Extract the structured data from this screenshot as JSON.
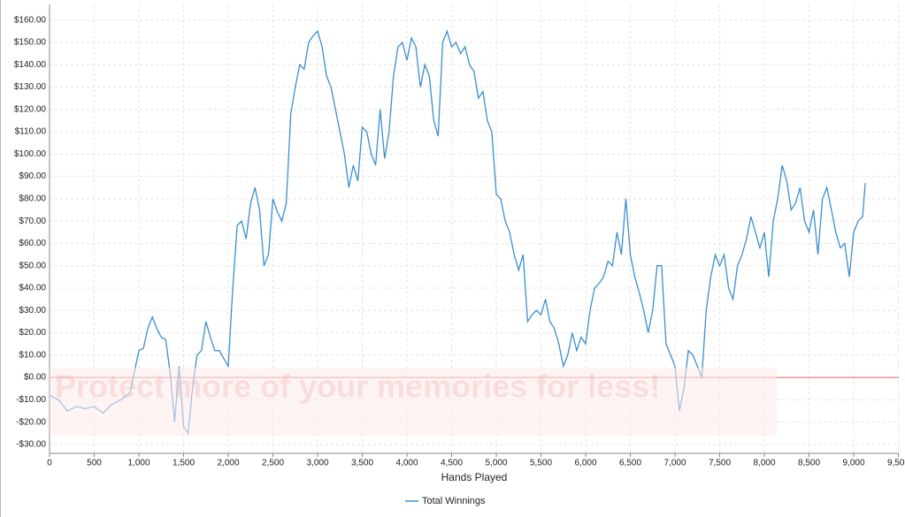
{
  "chart_data": {
    "type": "line",
    "x_label": "Hands Played",
    "watermark": "Protect more of your memories for less!",
    "x": [
      0,
      100,
      200,
      300,
      400,
      500,
      600,
      700,
      800,
      900,
      1000,
      1050,
      1100,
      1150,
      1200,
      1250,
      1300,
      1350,
      1400,
      1450,
      1500,
      1550,
      1600,
      1650,
      1700,
      1750,
      1800,
      1850,
      1900,
      2000,
      2050,
      2100,
      2150,
      2200,
      2250,
      2300,
      2350,
      2400,
      2450,
      2500,
      2550,
      2600,
      2650,
      2700,
      2750,
      2800,
      2850,
      2900,
      2950,
      3000,
      3050,
      3100,
      3150,
      3200,
      3250,
      3300,
      3350,
      3400,
      3450,
      3500,
      3550,
      3600,
      3650,
      3700,
      3750,
      3800,
      3850,
      3900,
      3950,
      4000,
      4050,
      4100,
      4150,
      4200,
      4250,
      4300,
      4350,
      4400,
      4450,
      4500,
      4550,
      4600,
      4650,
      4700,
      4750,
      4800,
      4850,
      4900,
      4950,
      5000,
      5050,
      5100,
      5150,
      5200,
      5250,
      5300,
      5350,
      5400,
      5450,
      5500,
      5550,
      5600,
      5650,
      5700,
      5750,
      5800,
      5850,
      5900,
      5950,
      6000,
      6050,
      6100,
      6150,
      6200,
      6250,
      6300,
      6350,
      6400,
      6450,
      6500,
      6550,
      6600,
      6650,
      6700,
      6750,
      6800,
      6850,
      6900,
      6950,
      7000,
      7050,
      7100,
      7150,
      7200,
      7250,
      7300,
      7350,
      7400,
      7450,
      7500,
      7550,
      7600,
      7650,
      7700,
      7750,
      7800,
      7850,
      7900,
      7950,
      8000,
      8050,
      8100,
      8150,
      8200,
      8250,
      8300,
      8350,
      8400,
      8450,
      8500,
      8550,
      8600,
      8650,
      8700,
      8750,
      8800,
      8850,
      8900,
      8950,
      9000,
      9050,
      9100,
      9130
    ],
    "series": [
      {
        "name": "Total Winnings",
        "color": "#3a8fd0",
        "values": [
          -8,
          -10,
          -15,
          -13,
          -14,
          -13,
          -16,
          -12,
          -10,
          -7,
          12,
          13,
          22,
          27,
          22,
          18,
          17,
          2,
          -20,
          5,
          -22,
          -25,
          -5,
          10,
          12,
          25,
          18,
          12,
          12,
          5,
          40,
          68,
          70,
          62,
          78,
          85,
          75,
          50,
          55,
          80,
          74,
          70,
          78,
          118,
          130,
          140,
          138,
          150,
          153,
          155,
          148,
          135,
          130,
          120,
          110,
          100,
          85,
          95,
          88,
          112,
          110,
          100,
          95,
          120,
          98,
          110,
          135,
          148,
          150,
          142,
          152,
          148,
          130,
          140,
          135,
          115,
          108,
          150,
          155,
          148,
          150,
          145,
          148,
          140,
          137,
          125,
          128,
          115,
          110,
          82,
          80,
          70,
          65,
          55,
          48,
          55,
          25,
          28,
          30,
          28,
          35,
          25,
          22,
          15,
          5,
          10,
          20,
          12,
          18,
          15,
          30,
          40,
          42,
          45,
          52,
          50,
          65,
          55,
          80,
          55,
          45,
          38,
          30,
          20,
          30,
          50,
          50,
          15,
          10,
          5,
          -15,
          -5,
          12,
          10,
          5,
          0,
          30,
          45,
          55,
          50,
          55,
          40,
          35,
          50,
          55,
          62,
          72,
          65,
          58,
          65,
          45,
          70,
          80,
          95,
          88,
          75,
          78,
          85,
          70,
          65,
          75,
          55,
          80,
          85,
          75,
          65,
          58,
          60,
          45,
          65,
          70,
          72,
          87
        ]
      }
    ],
    "xlim": [
      0,
      9500
    ],
    "ylim": [
      -34,
      167
    ],
    "xticks": [
      0,
      500,
      {
        "value": 1000,
        "label": "1,000"
      },
      {
        "value": 1500,
        "label": "1,500"
      },
      {
        "value": 2000,
        "label": "2,000"
      },
      {
        "value": 2500,
        "label": "2,500"
      },
      {
        "value": 3000,
        "label": "3,000"
      },
      {
        "value": 3500,
        "label": "3,500"
      },
      {
        "value": 4000,
        "label": "4,000"
      },
      {
        "value": 4500,
        "label": "4,500"
      },
      {
        "value": 5000,
        "label": "5,000"
      },
      {
        "value": 5500,
        "label": "5,500"
      },
      {
        "value": 6000,
        "label": "6,000"
      },
      {
        "value": 6500,
        "label": "6,500"
      },
      {
        "value": 7000,
        "label": "7,000"
      },
      {
        "value": 7500,
        "label": "7,500"
      },
      {
        "value": 8000,
        "label": "8,000"
      },
      {
        "value": 8500,
        "label": "8,500"
      },
      {
        "value": 9000,
        "label": "9,000"
      },
      {
        "value": 9500,
        "label": "9,500"
      }
    ],
    "yticks": [
      {
        "value": -30,
        "label": "-$30.00"
      },
      {
        "value": -20,
        "label": "-$20.00"
      },
      {
        "value": -10,
        "label": "-$10.00"
      },
      {
        "value": 0,
        "label": "$0.00"
      },
      {
        "value": 10,
        "label": "$10.00"
      },
      {
        "value": 20,
        "label": "$20.00"
      },
      {
        "value": 30,
        "label": "$30.00"
      },
      {
        "value": 40,
        "label": "$40.00"
      },
      {
        "value": 50,
        "label": "$50.00"
      },
      {
        "value": 60,
        "label": "$60.00"
      },
      {
        "value": 70,
        "label": "$70.00"
      },
      {
        "value": 80,
        "label": "$80.00"
      },
      {
        "value": 90,
        "label": "$90.00"
      },
      {
        "value": 100,
        "label": "$100.00"
      },
      {
        "value": 110,
        "label": "$110.00"
      },
      {
        "value": 120,
        "label": "$120.00"
      },
      {
        "value": 130,
        "label": "$130.00"
      },
      {
        "value": 140,
        "label": "$140.00"
      },
      {
        "value": 150,
        "label": "$150.00"
      },
      {
        "value": 160,
        "label": "$160.00"
      }
    ],
    "grid": true,
    "zero_line_color": "#e06060"
  }
}
